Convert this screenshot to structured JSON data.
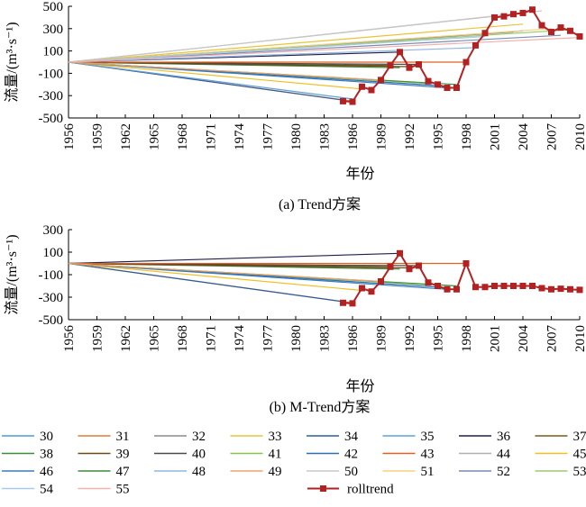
{
  "chart_data": [
    {
      "type": "line",
      "caption": "(a) Trend方案",
      "xlabel": "年份",
      "ylabel": "流量/(m³·s⁻¹)",
      "xlim": [
        1956,
        2010
      ],
      "ylim": [
        -500,
        500
      ],
      "xticks": [
        "1956",
        "1959",
        "1962",
        "1965",
        "1968",
        "1971",
        "1974",
        "1977",
        "1980",
        "1983",
        "1986",
        "1989",
        "1992",
        "1995",
        "1998",
        "2001",
        "2004",
        "2007",
        "2010"
      ],
      "yticks": [
        "-500",
        "-300",
        "-100",
        "100",
        "300",
        "500"
      ],
      "series": [
        {
          "name": "30",
          "color": "#4f9ad0",
          "x": [
            1956,
            2004
          ],
          "y": [
            0,
            280
          ]
        },
        {
          "name": "31",
          "color": "#e07b39",
          "x": [
            1956,
            1986
          ],
          "y": [
            0,
            -350
          ]
        },
        {
          "name": "32",
          "color": "#8c8c8c",
          "x": [
            1956,
            2003
          ],
          "y": [
            0,
            270
          ]
        },
        {
          "name": "33",
          "color": "#e8c33a",
          "x": [
            1956,
            2004
          ],
          "y": [
            0,
            340
          ]
        },
        {
          "name": "34",
          "color": "#2c5f9e",
          "x": [
            1956,
            1985
          ],
          "y": [
            0,
            -340
          ]
        },
        {
          "name": "35",
          "color": "#5fa0d8",
          "x": [
            1956,
            1986
          ],
          "y": [
            0,
            -330
          ]
        },
        {
          "name": "36",
          "color": "#1f1f4a",
          "x": [
            1956,
            1991
          ],
          "y": [
            0,
            90
          ]
        },
        {
          "name": "37",
          "color": "#7a5a1a",
          "x": [
            1956,
            1990
          ],
          "y": [
            0,
            -30
          ]
        },
        {
          "name": "38",
          "color": "#3d8c3d",
          "x": [
            1956,
            1991
          ],
          "y": [
            0,
            -50
          ]
        },
        {
          "name": "39",
          "color": "#6b4a1a",
          "x": [
            1956,
            1992
          ],
          "y": [
            0,
            -40
          ]
        },
        {
          "name": "40",
          "color": "#4a4a4a",
          "x": [
            1956,
            1993
          ],
          "y": [
            0,
            -20
          ]
        },
        {
          "name": "41",
          "color": "#8bc34a",
          "x": [
            1956,
            1994
          ],
          "y": [
            0,
            -190
          ]
        },
        {
          "name": "42",
          "color": "#2e6fb0",
          "x": [
            1956,
            1995
          ],
          "y": [
            0,
            -210
          ]
        },
        {
          "name": "43",
          "color": "#e06020",
          "x": [
            1956,
            1998
          ],
          "y": [
            0,
            0
          ]
        },
        {
          "name": "44",
          "color": "#b0b0b0",
          "x": [
            1956,
            2002
          ],
          "y": [
            0,
            420
          ]
        },
        {
          "name": "45",
          "color": "#f0c020",
          "x": [
            1956,
            1987
          ],
          "y": [
            0,
            -240
          ]
        },
        {
          "name": "46",
          "color": "#3a7cc0",
          "x": [
            1956,
            1996
          ],
          "y": [
            0,
            -230
          ]
        },
        {
          "name": "47",
          "color": "#3d8c3d",
          "x": [
            1956,
            1997
          ],
          "y": [
            0,
            -200
          ]
        },
        {
          "name": "48",
          "color": "#90b8e0",
          "x": [
            1956,
            1999
          ],
          "y": [
            0,
            130
          ]
        },
        {
          "name": "49",
          "color": "#f0a070",
          "x": [
            1956,
            1989
          ],
          "y": [
            0,
            -160
          ]
        },
        {
          "name": "50",
          "color": "#c8c8c8",
          "x": [
            1956,
            2006
          ],
          "y": [
            0,
            460
          ]
        },
        {
          "name": "51",
          "color": "#f5d080",
          "x": [
            1956,
            2007
          ],
          "y": [
            0,
            300
          ]
        },
        {
          "name": "52",
          "color": "#7a8cb0",
          "x": [
            1956,
            2008
          ],
          "y": [
            0,
            240
          ]
        },
        {
          "name": "53",
          "color": "#9ccc70",
          "x": [
            1956,
            2009
          ],
          "y": [
            0,
            290
          ]
        },
        {
          "name": "54",
          "color": "#a8c8e8",
          "x": [
            1956,
            2000
          ],
          "y": [
            0,
            230
          ]
        },
        {
          "name": "55",
          "color": "#f0b0b0",
          "x": [
            1956,
            2010
          ],
          "y": [
            0,
            220
          ]
        },
        {
          "name": "rolltrend",
          "color": "#b22222",
          "marker": "square",
          "x": [
            1985,
            1986,
            1987,
            1988,
            1989,
            1990,
            1991,
            1992,
            1993,
            1994,
            1995,
            1996,
            1997,
            1998,
            1999,
            2000,
            2001,
            2002,
            2003,
            2004,
            2005,
            2006,
            2007,
            2008,
            2009,
            2010
          ],
          "y": [
            -350,
            -355,
            -220,
            -250,
            -160,
            -30,
            90,
            -50,
            -20,
            -170,
            -200,
            -230,
            -230,
            0,
            150,
            260,
            400,
            410,
            430,
            440,
            470,
            330,
            270,
            310,
            280,
            230
          ]
        }
      ]
    },
    {
      "type": "line",
      "caption": "(b) M-Trend方案",
      "xlabel": "年份",
      "ylabel": "流量/(m³·s⁻¹)",
      "xlim": [
        1956,
        2010
      ],
      "ylim": [
        -500,
        300
      ],
      "xticks": [
        "1956",
        "1959",
        "1962",
        "1965",
        "1968",
        "1971",
        "1974",
        "1977",
        "1980",
        "1983",
        "1986",
        "1989",
        "1992",
        "1995",
        "1998",
        "2001",
        "2004",
        "2007",
        "2010"
      ],
      "yticks": [
        "-500",
        "-300",
        "-100",
        "100",
        "300"
      ],
      "series": [
        {
          "name": "31",
          "color": "#e07b39",
          "x": [
            1956,
            1986
          ],
          "y": [
            0,
            -350
          ]
        },
        {
          "name": "34",
          "color": "#2c5f9e",
          "x": [
            1956,
            1985
          ],
          "y": [
            0,
            -340
          ]
        },
        {
          "name": "36",
          "color": "#1f1f4a",
          "x": [
            1956,
            1991
          ],
          "y": [
            0,
            90
          ]
        },
        {
          "name": "37",
          "color": "#7a5a1a",
          "x": [
            1956,
            1990
          ],
          "y": [
            0,
            -30
          ]
        },
        {
          "name": "38",
          "color": "#3d8c3d",
          "x": [
            1956,
            1991
          ],
          "y": [
            0,
            -50
          ]
        },
        {
          "name": "39",
          "color": "#6b4a1a",
          "x": [
            1956,
            1992
          ],
          "y": [
            0,
            -40
          ]
        },
        {
          "name": "40",
          "color": "#4a4a4a",
          "x": [
            1956,
            1993
          ],
          "y": [
            0,
            -20
          ]
        },
        {
          "name": "41",
          "color": "#8bc34a",
          "x": [
            1956,
            1994
          ],
          "y": [
            0,
            -190
          ]
        },
        {
          "name": "42",
          "color": "#2e6fb0",
          "x": [
            1956,
            1995
          ],
          "y": [
            0,
            -210
          ]
        },
        {
          "name": "43",
          "color": "#e06020",
          "x": [
            1956,
            1998
          ],
          "y": [
            0,
            0
          ]
        },
        {
          "name": "45",
          "color": "#f0c020",
          "x": [
            1956,
            1987
          ],
          "y": [
            0,
            -240
          ]
        },
        {
          "name": "46",
          "color": "#3a7cc0",
          "x": [
            1956,
            1996
          ],
          "y": [
            0,
            -230
          ]
        },
        {
          "name": "47",
          "color": "#3d8c3d",
          "x": [
            1956,
            1997
          ],
          "y": [
            0,
            -200
          ]
        },
        {
          "name": "49",
          "color": "#f0a070",
          "x": [
            1956,
            1989
          ],
          "y": [
            0,
            -160
          ]
        },
        {
          "name": "rolltrend",
          "color": "#b22222",
          "marker": "square",
          "x": [
            1985,
            1986,
            1987,
            1988,
            1989,
            1990,
            1991,
            1992,
            1993,
            1994,
            1995,
            1996,
            1997,
            1998,
            1999,
            2000,
            2001,
            2002,
            2003,
            2004,
            2005,
            2006,
            2007,
            2008,
            2009,
            2010
          ],
          "y": [
            -350,
            -355,
            -220,
            -250,
            -160,
            -30,
            90,
            -50,
            -20,
            -170,
            -200,
            -230,
            -230,
            0,
            -210,
            -210,
            -200,
            -200,
            -200,
            -200,
            -200,
            -220,
            -230,
            -225,
            -230,
            -235
          ]
        }
      ]
    }
  ],
  "legend": {
    "entries": [
      {
        "name": "30",
        "color": "#4f9ad0"
      },
      {
        "name": "31",
        "color": "#e07b39"
      },
      {
        "name": "32",
        "color": "#8c8c8c"
      },
      {
        "name": "33",
        "color": "#e8c33a"
      },
      {
        "name": "34",
        "color": "#2c5f9e"
      },
      {
        "name": "35",
        "color": "#5fa0d8"
      },
      {
        "name": "36",
        "color": "#1f1f4a"
      },
      {
        "name": "37",
        "color": "#7a5a1a"
      },
      {
        "name": "38",
        "color": "#3d8c3d"
      },
      {
        "name": "39",
        "color": "#6b4a1a"
      },
      {
        "name": "40",
        "color": "#4a4a4a"
      },
      {
        "name": "41",
        "color": "#8bc34a"
      },
      {
        "name": "42",
        "color": "#2e6fb0"
      },
      {
        "name": "43",
        "color": "#e06020"
      },
      {
        "name": "44",
        "color": "#b0b0b0"
      },
      {
        "name": "45",
        "color": "#f0c020"
      },
      {
        "name": "46",
        "color": "#3a7cc0"
      },
      {
        "name": "47",
        "color": "#3d8c3d"
      },
      {
        "name": "48",
        "color": "#90b8e0"
      },
      {
        "name": "49",
        "color": "#f0a070"
      },
      {
        "name": "50",
        "color": "#c8c8c8"
      },
      {
        "name": "51",
        "color": "#f5d080"
      },
      {
        "name": "52",
        "color": "#7a8cb0"
      },
      {
        "name": "53",
        "color": "#9ccc70"
      },
      {
        "name": "54",
        "color": "#a8c8e8"
      },
      {
        "name": "55",
        "color": "#f0b0b0"
      },
      {
        "name": "rolltrend",
        "color": "#b22222",
        "marker": "square"
      }
    ]
  }
}
